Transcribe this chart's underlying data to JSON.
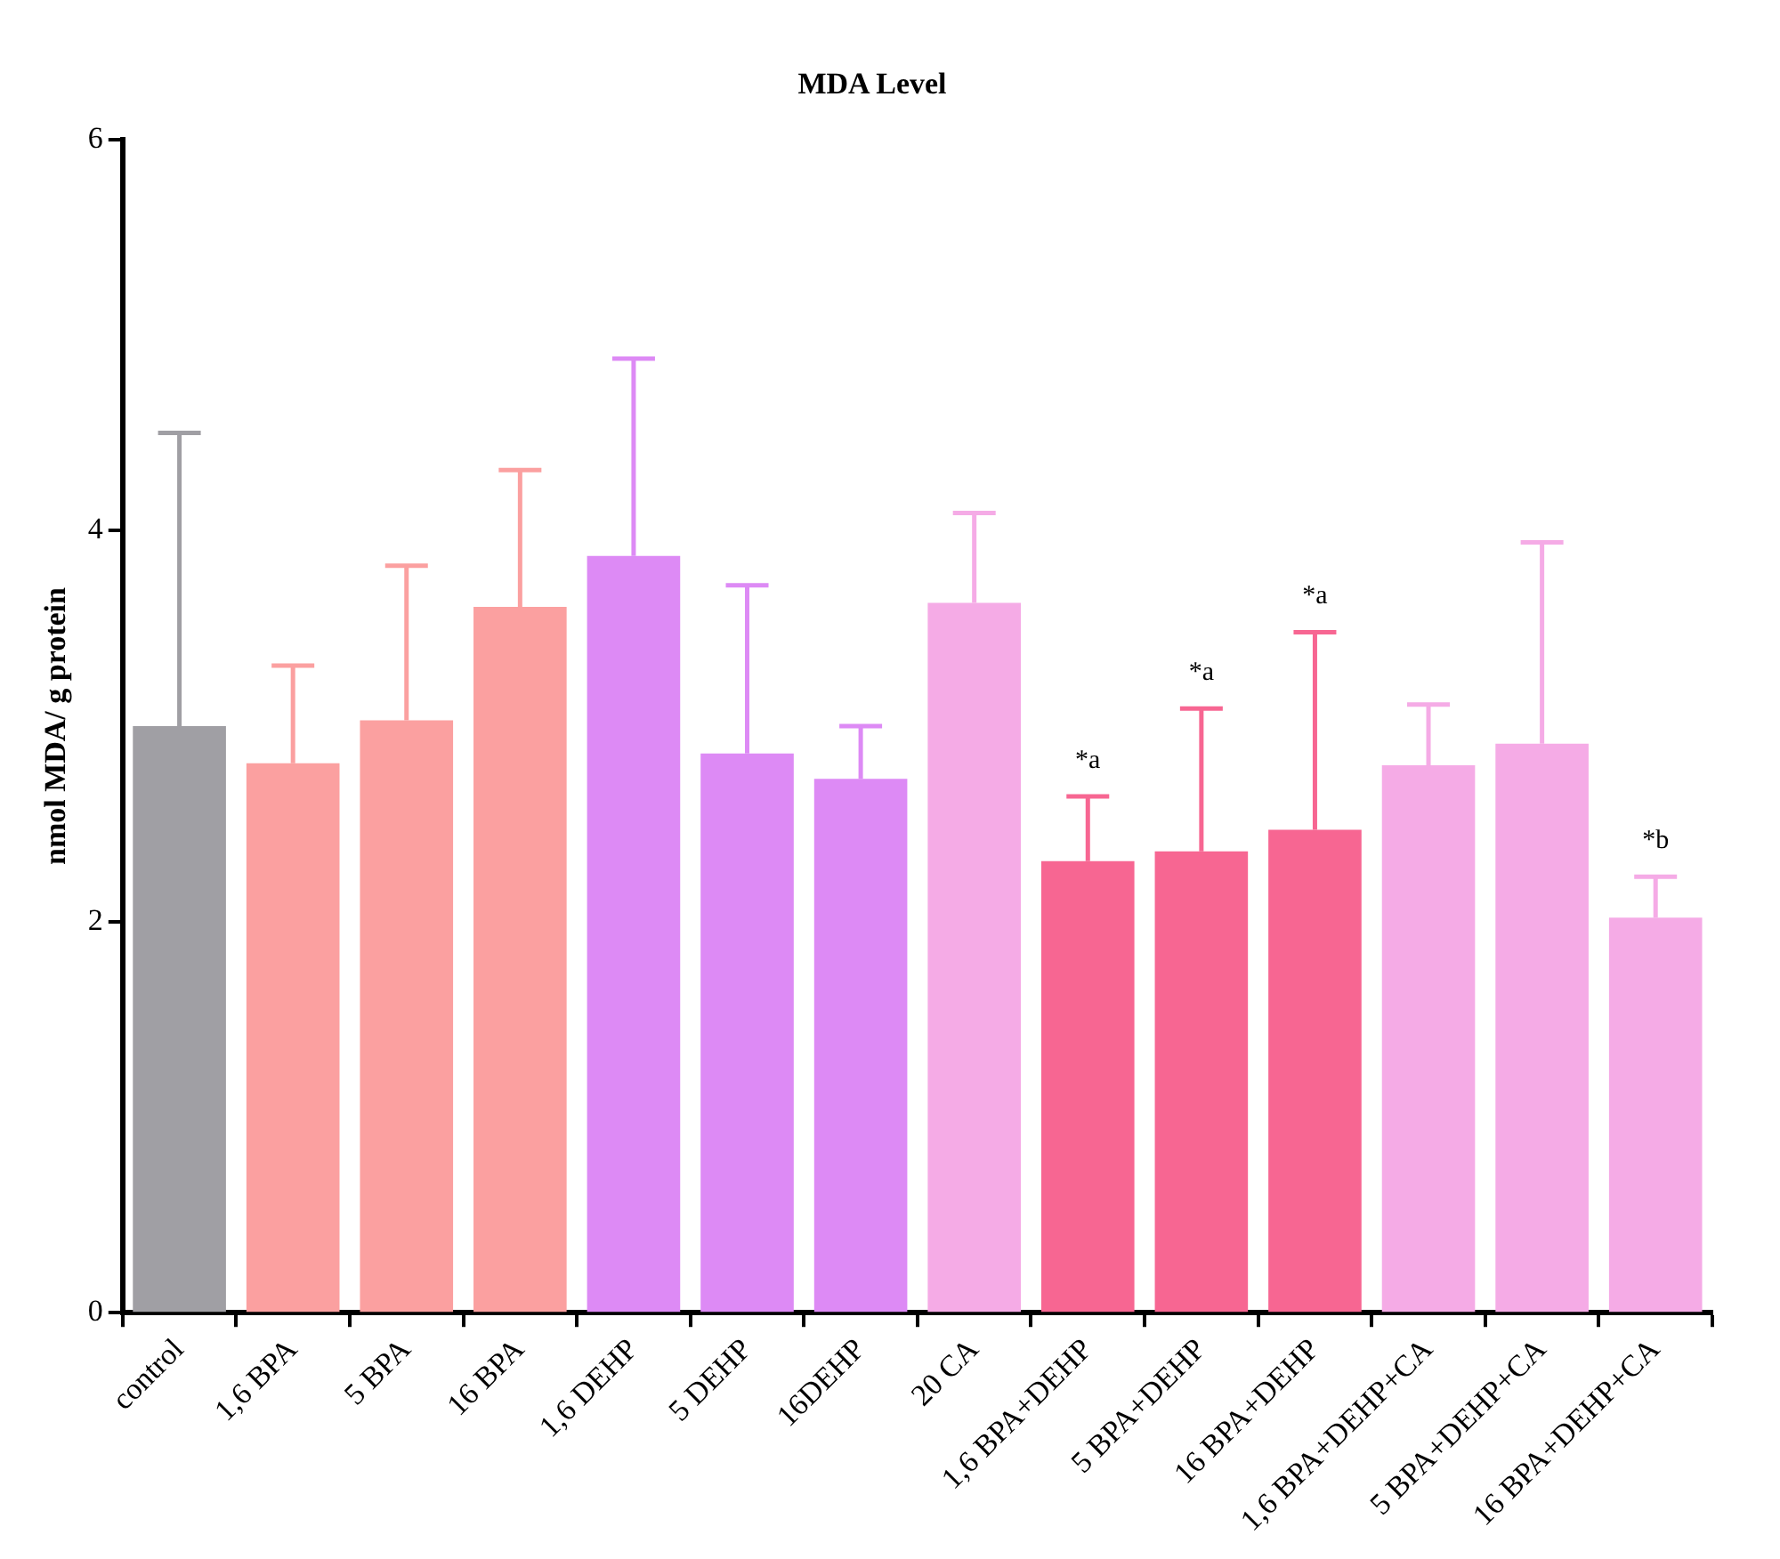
{
  "chart_data": {
    "type": "bar",
    "title": "MDA Level",
    "ylabel": "nmol MDA/ g protein",
    "categories": [
      "control",
      "1,6 BPA",
      "5 BPA",
      "16 BPA",
      "1,6 DEHP",
      "5 DEHP",
      "16DEHP",
      "20 CA",
      "1,6 BPA+DEHP",
      "5 BPA+DEHP",
      "16 BPA+DEHP",
      "1,6 BPA+DEHP+CA",
      "5 BPA+DEHP+CA",
      "16 BPA+DEHP+CA"
    ],
    "values": [
      3.0,
      2.81,
      3.03,
      3.61,
      3.87,
      2.86,
      2.73,
      3.63,
      2.31,
      2.36,
      2.47,
      2.8,
      2.91,
      2.02
    ],
    "errors": [
      [
        3.0,
        4.5
      ],
      [
        2.81,
        3.31
      ],
      [
        3.03,
        3.82
      ],
      [
        3.61,
        4.31
      ],
      [
        3.87,
        4.88
      ],
      [
        2.86,
        3.72
      ],
      [
        2.73,
        3.0
      ],
      [
        3.63,
        4.09
      ],
      [
        2.31,
        2.64
      ],
      [
        2.36,
        3.09
      ],
      [
        2.47,
        3.48
      ],
      [
        2.8,
        3.11
      ],
      [
        2.91,
        3.94
      ],
      [
        2.02,
        2.23
      ]
    ],
    "colors": [
      "#a09fa4",
      "#fba0a0",
      "#fba0a0",
      "#fba0a0",
      "#dd8af5",
      "#dd8af5",
      "#dd8af5",
      "#f5abe6",
      "#f76692",
      "#f76692",
      "#f76692",
      "#f5abe6",
      "#f5abe6",
      "#f5abe6"
    ],
    "ylim": [
      0,
      6
    ],
    "yticks": [
      0,
      2,
      4,
      6
    ],
    "grid": false,
    "legend": false,
    "annotations": [
      {
        "text": "*a",
        "x": "1,6 BPA+DEHP",
        "y": 2.64
      },
      {
        "text": "*a",
        "x": "5 BPA+DEHP",
        "y": 3.09
      },
      {
        "text": "*a",
        "x": "16 BPA+DEHP",
        "y": 3.48
      },
      {
        "text": "*b",
        "x": "16 BPA+DEHP+CA",
        "y": 2.23
      }
    ]
  }
}
